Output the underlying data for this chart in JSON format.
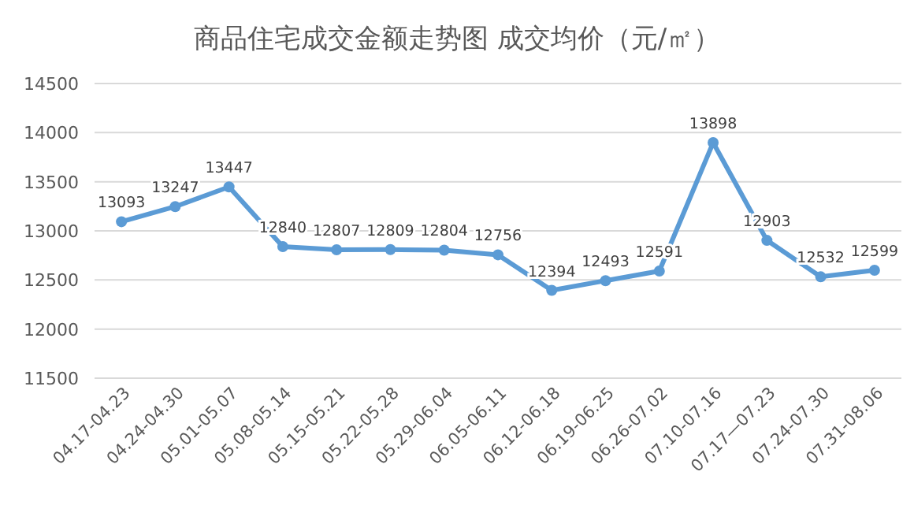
{
  "chart_data": {
    "type": "line",
    "title": "商品住宅成交金额走势图 成交均价（元/㎡）",
    "categories": [
      "04.17-04.23",
      "04.24-04.30",
      "05.01-05.07",
      "05.08-05.14",
      "05.15-05.21",
      "05.22-05.28",
      "05.29-06.04",
      "06.05-06.11",
      "06.12-06.18",
      "06.19-06.25",
      "06.26-07.02",
      "07.10-07.16",
      "07.17—07.23",
      "07.24-07.30",
      "07.31-08.06"
    ],
    "series": [
      {
        "color": "#5b9bd5",
        "values": [
          13093,
          13247,
          13447,
          12840,
          12807,
          12809,
          12804,
          12756,
          12394,
          12493,
          12591,
          13898,
          12903,
          12532,
          12599
        ]
      }
    ],
    "ylim": [
      11500,
      14500
    ],
    "yticks": [
      11500,
      12000,
      12500,
      13000,
      13500,
      14000,
      14500
    ],
    "grid": "y",
    "marker": "circle",
    "line_style": "solid",
    "data_labels": true
  }
}
